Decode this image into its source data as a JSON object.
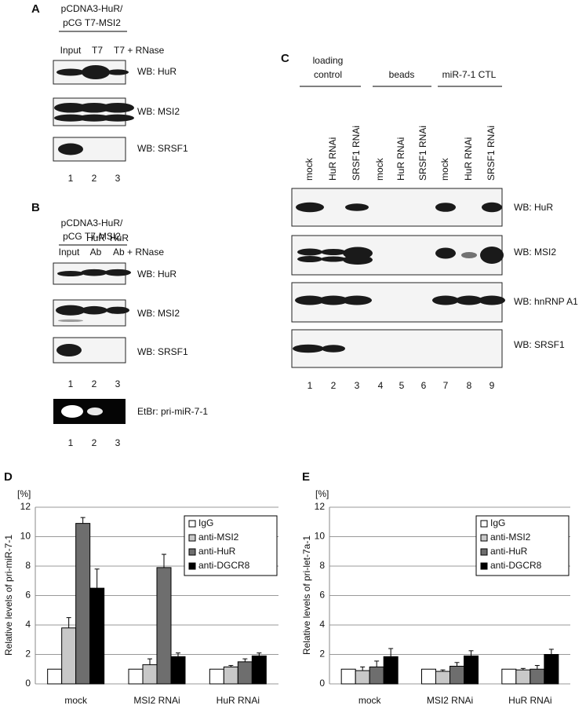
{
  "panel_a": {
    "label": "A",
    "construct": [
      "pCDNA3-HuR/",
      "pCG T7-MSI2"
    ],
    "lanes": [
      "Input",
      "T7",
      "T7 + RNase"
    ],
    "blots": [
      "WB: HuR",
      "WB: MSI2",
      "WB: SRSF1"
    ],
    "lane_numbers": [
      1,
      2,
      3
    ]
  },
  "panel_b": {
    "label": "B",
    "construct": [
      "pCDNA3-HuR/",
      "pCG T7-MSI2"
    ],
    "lanes": [
      [
        "Input"
      ],
      [
        "HuR",
        "Ab"
      ],
      [
        "HuR",
        "Ab + RNase"
      ]
    ],
    "blots": [
      "WB: HuR",
      "WB: MSI2",
      "WB: SRSF1"
    ],
    "lane_numbers": [
      1,
      2,
      3
    ],
    "gel": "EtBr: pri-miR-7-1",
    "gel_lane_numbers": [
      1,
      2,
      3
    ]
  },
  "panel_c": {
    "label": "C",
    "groups": [
      [
        "loading",
        "control"
      ],
      [
        "beads"
      ],
      [
        "miR-7-1 CTL"
      ]
    ],
    "lanes": [
      "mock",
      "HuR RNAi",
      "SRSF1 RNAi",
      "mock",
      "HuR RNAi",
      "SRSF1 RNAi",
      "mock",
      "HuR RNAi",
      "SRSF1 RNAi"
    ],
    "blots": [
      "WB: HuR",
      "WB: MSI2",
      "WB: hnRNP A1",
      "WB: SRSF1"
    ],
    "lane_numbers": [
      1,
      2,
      3,
      4,
      5,
      6,
      7,
      8,
      9
    ]
  },
  "chart_data": [
    {
      "type": "bar",
      "panel": "D",
      "unit": "[%]",
      "ylabel": "Relative levels of pri-miR-7-1",
      "categories": [
        "mock",
        "MSI2 RNAi",
        "HuR RNAi"
      ],
      "series": [
        {
          "name": "IgG",
          "color": "#ffffff",
          "values": [
            1,
            1,
            1
          ]
        },
        {
          "name": "anti-MSI2",
          "color": "#c8c8c8",
          "values": [
            3.8,
            1.3,
            1.15
          ],
          "errors": [
            0.7,
            0.4,
            0.1
          ]
        },
        {
          "name": "anti-HuR",
          "color": "#6e6e6e",
          "values": [
            10.9,
            7.9,
            1.5
          ],
          "errors": [
            0.4,
            0.9,
            0.2
          ]
        },
        {
          "name": "anti-DGCR8",
          "color": "#000000",
          "values": [
            6.5,
            1.85,
            1.9
          ],
          "errors": [
            1.3,
            0.25,
            0.2
          ]
        }
      ],
      "ylim": [
        0,
        12
      ],
      "yticks": [
        0,
        2,
        4,
        6,
        8,
        10,
        12
      ],
      "grid": true,
      "legend": "upper right"
    },
    {
      "type": "bar",
      "panel": "E",
      "unit": "[%]",
      "ylabel": "Relative levels of pri-let-7a-1",
      "categories": [
        "mock",
        "MSI2 RNAi",
        "HuR RNAi"
      ],
      "series": [
        {
          "name": "IgG",
          "color": "#ffffff",
          "values": [
            1,
            1,
            1
          ]
        },
        {
          "name": "anti-MSI2",
          "color": "#c8c8c8",
          "values": [
            0.9,
            0.85,
            0.95
          ],
          "errors": [
            0.25,
            0.1,
            0.1
          ]
        },
        {
          "name": "anti-HuR",
          "color": "#6e6e6e",
          "values": [
            1.15,
            1.2,
            1.0
          ],
          "errors": [
            0.4,
            0.25,
            0.25
          ]
        },
        {
          "name": "anti-DGCR8",
          "color": "#000000",
          "values": [
            1.85,
            1.9,
            2.0
          ],
          "errors": [
            0.55,
            0.35,
            0.35
          ]
        }
      ],
      "ylim": [
        0,
        12
      ],
      "yticks": [
        0,
        2,
        4,
        6,
        8,
        10,
        12
      ],
      "grid": true,
      "legend": "upper right"
    }
  ]
}
